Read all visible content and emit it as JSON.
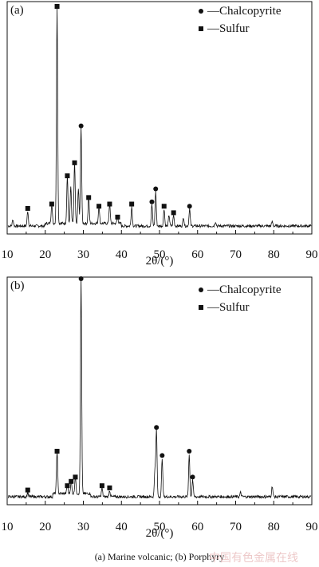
{
  "chart_data": [
    {
      "type": "line",
      "panel_label": "(a)",
      "xlabel": "2θ/(°)",
      "xlim": [
        10,
        90
      ],
      "xticks": [
        10,
        20,
        30,
        40,
        50,
        60,
        70,
        80,
        90
      ],
      "ylim": [
        0,
        100
      ],
      "legend": [
        {
          "marker": "circle",
          "label": "—Chalcopyrite"
        },
        {
          "marker": "square",
          "label": "—Sulfur"
        }
      ],
      "legend_position": "top-right",
      "peaks": [
        {
          "x": 11.5,
          "y": 3
        },
        {
          "x": 15.4,
          "y": 7,
          "phase": "Sulfur"
        },
        {
          "x": 21.7,
          "y": 9,
          "phase": "Sulfur"
        },
        {
          "x": 23.1,
          "y": 100,
          "phase": "Sulfur"
        },
        {
          "x": 25.8,
          "y": 22,
          "phase": "Sulfur"
        },
        {
          "x": 26.7,
          "y": 17
        },
        {
          "x": 27.7,
          "y": 28,
          "phase": "Sulfur"
        },
        {
          "x": 28.7,
          "y": 16
        },
        {
          "x": 29.4,
          "y": 45,
          "phase": "Chalcopyrite"
        },
        {
          "x": 31.4,
          "y": 12,
          "phase": "Sulfur"
        },
        {
          "x": 34.1,
          "y": 8,
          "phase": "Sulfur"
        },
        {
          "x": 36.9,
          "y": 9,
          "phase": "Sulfur"
        },
        {
          "x": 39.0,
          "y": 3,
          "phase": "Sulfur"
        },
        {
          "x": 42.7,
          "y": 9,
          "phase": "Sulfur"
        },
        {
          "x": 48.0,
          "y": 10,
          "phase": "Chalcopyrite"
        },
        {
          "x": 49.0,
          "y": 16,
          "phase": "Chalcopyrite"
        },
        {
          "x": 51.2,
          "y": 8,
          "phase": "Sulfur"
        },
        {
          "x": 52.5,
          "y": 5
        },
        {
          "x": 53.7,
          "y": 5,
          "phase": "Sulfur"
        },
        {
          "x": 56.3,
          "y": 4
        },
        {
          "x": 57.9,
          "y": 8,
          "phase": "Chalcopyrite"
        },
        {
          "x": 64.7,
          "y": 2
        },
        {
          "x": 79.6,
          "y": 2
        }
      ]
    },
    {
      "type": "line",
      "panel_label": "(b)",
      "xlabel": "2θ/(°)",
      "xlim": [
        10,
        90
      ],
      "xticks": [
        10,
        20,
        30,
        40,
        50,
        60,
        70,
        80,
        90
      ],
      "ylim": [
        0,
        100
      ],
      "legend": [
        {
          "marker": "circle",
          "label": "—Chalcopyrite"
        },
        {
          "marker": "square",
          "label": "—Sulfur"
        }
      ],
      "legend_position": "top-right",
      "peaks": [
        {
          "x": 15.4,
          "y": 2,
          "phase": "Sulfur"
        },
        {
          "x": 23.1,
          "y": 20,
          "phase": "Sulfur"
        },
        {
          "x": 25.8,
          "y": 4,
          "phase": "Sulfur"
        },
        {
          "x": 26.8,
          "y": 6,
          "phase": "Sulfur"
        },
        {
          "x": 27.9,
          "y": 8,
          "phase": "Sulfur"
        },
        {
          "x": 29.4,
          "y": 100,
          "phase": "Chalcopyrite"
        },
        {
          "x": 34.9,
          "y": 4,
          "phase": "Sulfur"
        },
        {
          "x": 36.9,
          "y": 3,
          "phase": "Sulfur"
        },
        {
          "x": 48.8,
          "y": 13
        },
        {
          "x": 49.2,
          "y": 31,
          "phase": "Chalcopyrite"
        },
        {
          "x": 50.7,
          "y": 18,
          "phase": "Chalcopyrite"
        },
        {
          "x": 57.8,
          "y": 20,
          "phase": "Chalcopyrite"
        },
        {
          "x": 58.7,
          "y": 8,
          "phase": "Chalcopyrite"
        },
        {
          "x": 71.3,
          "y": 2
        },
        {
          "x": 79.6,
          "y": 5
        }
      ]
    }
  ],
  "caption": "(a) Marine volcanic; (b) Porphyry",
  "watermark": "中国有色金属在线"
}
